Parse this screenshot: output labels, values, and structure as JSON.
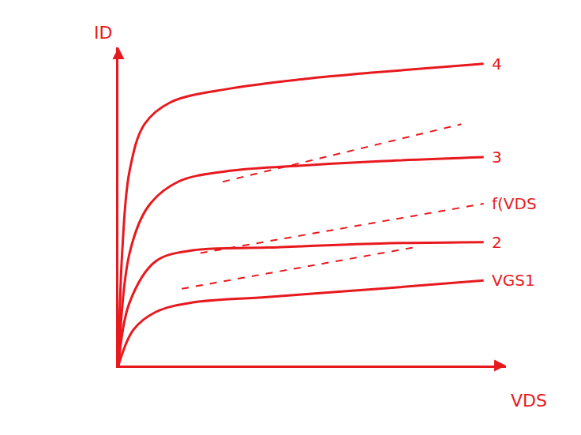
{
  "chart_data": {
    "type": "line",
    "x_label": "VDS",
    "y_label": "ID",
    "xlim": [
      0,
      10.4
    ],
    "ylim": [
      0,
      11.6
    ],
    "xticks": [],
    "yticks": [],
    "tick_labels": false,
    "grid": false,
    "color": "#e8191e",
    "series": [
      {
        "name": "4",
        "color": "#e8191e",
        "line_style": "solid",
        "x": [
          0,
          0.1,
          0.3,
          0.7,
          1.4,
          3,
          5,
          7,
          9.8
        ],
        "values": [
          0,
          4.1,
          7.1,
          8.8,
          9.6,
          10.1,
          10.45,
          10.7,
          11.0
        ]
      },
      {
        "color": "#e8191e",
        "line_style": "dashed",
        "x": [
          2.8,
          9.2
        ],
        "values": [
          6.7,
          8.8
        ]
      },
      {
        "name": "3",
        "color": "#e8191e",
        "line_style": "solid",
        "x": [
          0,
          0.3,
          0.8,
          1.6,
          3,
          5,
          7,
          9.8
        ],
        "values": [
          0,
          4.1,
          5.8,
          6.7,
          7.1,
          7.3,
          7.45,
          7.6
        ]
      },
      {
        "name": "f(VDS",
        "color": "#e8191e",
        "line_style": "dashed",
        "x": [
          2.2,
          9.8
        ],
        "values": [
          4.1,
          5.9
        ]
      },
      {
        "name": "2",
        "color": "#e8191e",
        "line_style": "solid",
        "x": [
          0,
          0.3,
          1,
          2,
          4,
          7,
          9.8
        ],
        "values": [
          0,
          2.3,
          3.8,
          4.2,
          4.3,
          4.45,
          4.5
        ]
      },
      {
        "color": "#e8191e",
        "line_style": "dashed",
        "x": [
          1.7,
          7.9
        ],
        "values": [
          2.8,
          4.3
        ]
      },
      {
        "name": "VGS1",
        "color": "#e8191e",
        "line_style": "solid",
        "x": [
          0,
          0.4,
          1,
          2,
          4,
          7,
          9.8
        ],
        "values": [
          0,
          1.3,
          1.95,
          2.3,
          2.5,
          2.8,
          3.1
        ]
      }
    ]
  }
}
